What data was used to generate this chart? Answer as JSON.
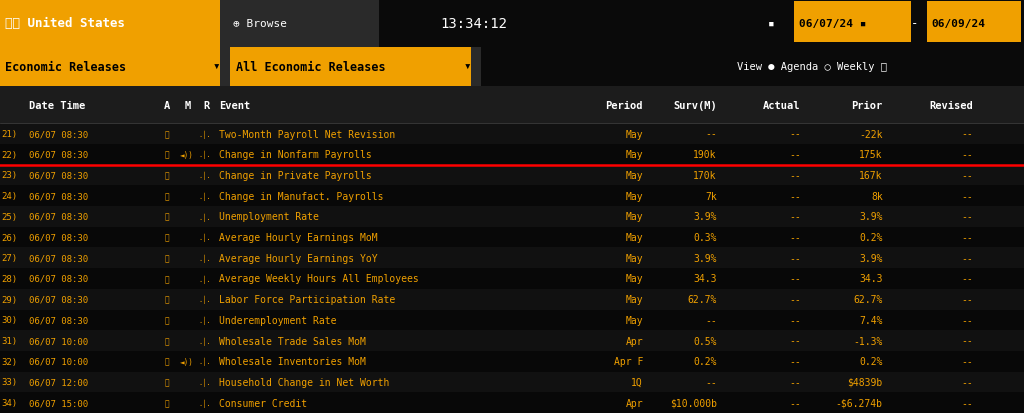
{
  "bg_color": "#0a0a0a",
  "header_bar_color": "#f0a000",
  "header_text_color": "#ffffff",
  "cell_text_color": "#f0a000",
  "red_line_after_row": 1,
  "header_row": {
    "dt": "Date Time",
    "a": "A",
    "m": "M",
    "r": "R",
    "event": "Event",
    "period": "Period",
    "surv": "Surv(M)",
    "actual": "Actual",
    "prior": "Prior",
    "revised": "Revised"
  },
  "top_bar": {
    "country": "United States",
    "browse": "Browse",
    "time": "13:34:12",
    "date_from": "06/07/24",
    "date_to": "06/09/24"
  },
  "filter_bar": {
    "left": "Economic Releases",
    "right": "All Economic Releases"
  },
  "rows": [
    {
      "num": "21)",
      "datetime": "06/07 08:30",
      "alert": true,
      "m": false,
      "r": true,
      "event": "Two-Month Payroll Net Revision",
      "period": "May",
      "surv": "--",
      "actual": "--",
      "prior": "-22k",
      "revised": "--"
    },
    {
      "num": "22)",
      "datetime": "06/07 08:30",
      "alert": true,
      "m": true,
      "r": true,
      "event": "Change in Nonfarm Payrolls",
      "period": "May",
      "surv": "190k",
      "actual": "--",
      "prior": "175k",
      "revised": "--"
    },
    {
      "num": "23)",
      "datetime": "06/07 08:30",
      "alert": true,
      "m": false,
      "r": true,
      "event": "Change in Private Payrolls",
      "period": "May",
      "surv": "170k",
      "actual": "--",
      "prior": "167k",
      "revised": "--"
    },
    {
      "num": "24)",
      "datetime": "06/07 08:30",
      "alert": true,
      "m": false,
      "r": true,
      "event": "Change in Manufact. Payrolls",
      "period": "May",
      "surv": "7k",
      "actual": "--",
      "prior": "8k",
      "revised": "--"
    },
    {
      "num": "25)",
      "datetime": "06/07 08:30",
      "alert": true,
      "m": false,
      "r": true,
      "event": "Unemployment Rate",
      "period": "May",
      "surv": "3.9%",
      "actual": "--",
      "prior": "3.9%",
      "revised": "--"
    },
    {
      "num": "26)",
      "datetime": "06/07 08:30",
      "alert": true,
      "m": false,
      "r": true,
      "event": "Average Hourly Earnings MoM",
      "period": "May",
      "surv": "0.3%",
      "actual": "--",
      "prior": "0.2%",
      "revised": "--"
    },
    {
      "num": "27)",
      "datetime": "06/07 08:30",
      "alert": true,
      "m": false,
      "r": true,
      "event": "Average Hourly Earnings YoY",
      "period": "May",
      "surv": "3.9%",
      "actual": "--",
      "prior": "3.9%",
      "revised": "--"
    },
    {
      "num": "28)",
      "datetime": "06/07 08:30",
      "alert": true,
      "m": false,
      "r": true,
      "event": "Average Weekly Hours All Employees",
      "period": "May",
      "surv": "34.3",
      "actual": "--",
      "prior": "34.3",
      "revised": "--"
    },
    {
      "num": "29)",
      "datetime": "06/07 08:30",
      "alert": true,
      "m": false,
      "r": true,
      "event": "Labor Force Participation Rate",
      "period": "May",
      "surv": "62.7%",
      "actual": "--",
      "prior": "62.7%",
      "revised": "--"
    },
    {
      "num": "30)",
      "datetime": "06/07 08:30",
      "alert": true,
      "m": false,
      "r": true,
      "event": "Underemployment Rate",
      "period": "May",
      "surv": "--",
      "actual": "--",
      "prior": "7.4%",
      "revised": "--"
    },
    {
      "num": "31)",
      "datetime": "06/07 10:00",
      "alert": true,
      "m": false,
      "r": true,
      "event": "Wholesale Trade Sales MoM",
      "period": "Apr",
      "surv": "0.5%",
      "actual": "--",
      "prior": "-1.3%",
      "revised": "--"
    },
    {
      "num": "32)",
      "datetime": "06/07 10:00",
      "alert": true,
      "m": true,
      "r": true,
      "event": "Wholesale Inventories MoM",
      "period": "Apr F",
      "surv": "0.2%",
      "actual": "--",
      "prior": "0.2%",
      "revised": "--"
    },
    {
      "num": "33)",
      "datetime": "06/07 12:00",
      "alert": true,
      "m": false,
      "r": true,
      "event": "Household Change in Net Worth",
      "period": "1Q",
      "surv": "--",
      "actual": "--",
      "prior": "$4839b",
      "revised": "--"
    },
    {
      "num": "34)",
      "datetime": "06/07 15:00",
      "alert": true,
      "m": false,
      "r": true,
      "event": "Consumer Credit",
      "period": "Apr",
      "surv": "$10.000b",
      "actual": "--",
      "prior": "-$6.274b",
      "revised": "--"
    }
  ]
}
